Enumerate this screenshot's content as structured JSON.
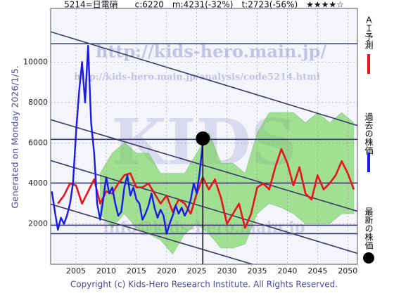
{
  "chart_data": {
    "type": "line",
    "title": "5214=日電硝　　c:6220　m:4231(-32%)　t:2723(-56%)　★★★★☆",
    "side_note": "Generated on Monday 2026/1/5.",
    "footer": "Copyright (c) Kids-Hero Research Institute. All Rights Reserved.",
    "watermarks": [
      "http://kids-hero.main.jp/",
      "http://kids-hero.main.jp/analysis/code5214.html",
      "info@kids-hero.main.jp",
      "KIDS"
    ],
    "xlim": [
      2000.8,
      2051.6
    ],
    "ylim": [
      0,
      12650
    ],
    "xticks": [
      2005,
      2010,
      2015,
      2020,
      2025,
      2030,
      2035,
      2040,
      2045,
      2050
    ],
    "yticks": [
      2000,
      4000,
      6000,
      8000,
      10000
    ],
    "grid": true,
    "band": {
      "color": "#5fcf3f",
      "x": [
        2009,
        2011,
        2013,
        2015,
        2017,
        2019,
        2021,
        2023,
        2025,
        2027,
        2029,
        2031,
        2033,
        2035,
        2037,
        2039,
        2041,
        2043,
        2045,
        2047,
        2049,
        2051
      ],
      "lower": [
        2500,
        1800,
        2500,
        1800,
        1500,
        1200,
        500,
        1500,
        2000,
        1500,
        800,
        800,
        1000,
        2500,
        3000,
        2800,
        2500,
        2000,
        2000,
        2000,
        2500,
        2500
      ],
      "upper": [
        4500,
        5500,
        6000,
        5500,
        5500,
        4500,
        4500,
        4500,
        5500,
        6500,
        5000,
        5000,
        4500,
        6500,
        7500,
        7500,
        7500,
        7000,
        7500,
        7000,
        7500,
        7000
      ]
    },
    "hlines": [
      10904,
      6174,
      4017,
      1930,
      1513
    ],
    "trend_lines": [
      [
        11496,
        6862
      ],
      [
        7148,
        2626
      ],
      [
        5130,
        539
      ],
      [
        2974,
        -1548
      ]
    ],
    "series": [
      {
        "name": "ＡＩ予測",
        "color": "#e8141e",
        "x": [
          2002,
          2003,
          2004,
          2005,
          2006,
          2007,
          2008,
          2009,
          2010,
          2011,
          2012,
          2013,
          2014,
          2015,
          2016,
          2017,
          2018,
          2019,
          2020,
          2021,
          2022,
          2023,
          2024,
          2025,
          2026,
          2027,
          2028,
          2029,
          2030,
          2031,
          2032,
          2033,
          2034,
          2035,
          2036,
          2037,
          2038,
          2039,
          2040,
          2041,
          2042,
          2043,
          2044,
          2045,
          2046,
          2047,
          2048,
          2049,
          2050,
          2051
        ],
        "values": [
          3000,
          3400,
          4000,
          3900,
          3000,
          3600,
          4200,
          3000,
          3600,
          3500,
          4000,
          4400,
          4500,
          3800,
          3800,
          4000,
          3500,
          3000,
          3400,
          2600,
          3200,
          3000,
          2500,
          3500,
          4300,
          3700,
          4200,
          3300,
          2000,
          2500,
          3000,
          1800,
          2500,
          3800,
          4000,
          3700,
          4800,
          5700,
          5000,
          3900,
          4800,
          3500,
          3200,
          4400,
          3700,
          4000,
          4400,
          5100,
          4500,
          3700
        ]
      },
      {
        "name": "過去の株価",
        "color": "#1a1aee",
        "x": [
          2001,
          2001.5,
          2002,
          2002.5,
          2003,
          2003.5,
          2004,
          2004.5,
          2005,
          2005.5,
          2006,
          2006.5,
          2007,
          2007.5,
          2008,
          2008.5,
          2009,
          2009.5,
          2010,
          2010.5,
          2011,
          2011.5,
          2012,
          2012.5,
          2013,
          2013.5,
          2014,
          2014.5,
          2015,
          2015.5,
          2016,
          2016.5,
          2017,
          2017.5,
          2018,
          2018.5,
          2019,
          2019.5,
          2020,
          2020.5,
          2021,
          2021.5,
          2022,
          2022.5,
          2023,
          2023.5,
          2024,
          2024.5,
          2025,
          2025.5,
          2026
        ],
        "values": [
          3600,
          2600,
          1700,
          2300,
          2000,
          2400,
          3000,
          4000,
          6500,
          8500,
          10000,
          8000,
          10800,
          7000,
          5500,
          3000,
          2200,
          3200,
          4300,
          3500,
          3800,
          3000,
          2400,
          2600,
          3800,
          4400,
          3400,
          3800,
          3200,
          3000,
          2200,
          2500,
          2900,
          3500,
          2800,
          2300,
          2700,
          2400,
          1500,
          2000,
          2400,
          2900,
          2500,
          2800,
          2400,
          2700,
          3200,
          4000,
          3500,
          4600,
          6000
        ]
      }
    ],
    "latest": {
      "name": "最新の株価",
      "color": "#000000",
      "x": 2026,
      "value": 6220
    }
  }
}
